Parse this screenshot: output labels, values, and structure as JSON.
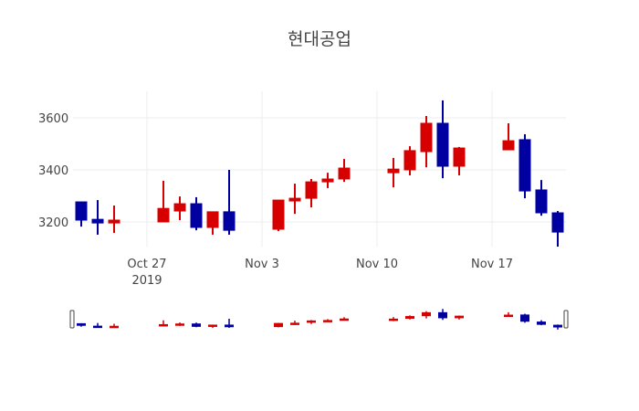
{
  "title": "현대공업",
  "colors": {
    "increasing": "#d60000",
    "decreasing": "#0000a0",
    "grid": "#eeeeee",
    "slider_border": "#444444"
  },
  "chart_data": {
    "type": "candlestick",
    "title": "현대공업",
    "xlabel": "",
    "ylabel": "",
    "ylim": [
      3100,
      3700
    ],
    "y_ticks": [
      3200,
      3400,
      3600
    ],
    "x_tick_labels": [
      "Oct 27\n2019",
      "Nov 3",
      "Nov 10",
      "Nov 17"
    ],
    "grid": true,
    "rangeslider": true,
    "x": [
      "2019-10-23",
      "2019-10-24",
      "2019-10-25",
      "2019-10-28",
      "2019-10-29",
      "2019-10-30",
      "2019-10-31",
      "2019-11-01",
      "2019-11-04",
      "2019-11-05",
      "2019-11-06",
      "2019-11-07",
      "2019-11-08",
      "2019-11-11",
      "2019-11-12",
      "2019-11-13",
      "2019-11-14",
      "2019-11-15",
      "2019-11-18",
      "2019-11-19",
      "2019-11-20",
      "2019-11-21"
    ],
    "open": [
      3277,
      3210,
      3196,
      3200,
      3242,
      3270,
      3179,
      3239,
      3172,
      3284,
      3291,
      3354,
      3365,
      3389,
      3400,
      3470,
      3579,
      3414,
      3477,
      3516,
      3323,
      3235
    ],
    "high": [
      3277,
      3284,
      3263,
      3358,
      3298,
      3295,
      3239,
      3400,
      3284,
      3347,
      3365,
      3389,
      3442,
      3446,
      3491,
      3607,
      3667,
      3488,
      3579,
      3537,
      3361,
      3242
    ],
    "low": [
      3182,
      3151,
      3158,
      3200,
      3207,
      3168,
      3151,
      3151,
      3165,
      3231,
      3256,
      3330,
      3354,
      3333,
      3379,
      3410,
      3368,
      3379,
      3477,
      3291,
      3224,
      3105
    ],
    "close": [
      3207,
      3196,
      3207,
      3252,
      3270,
      3179,
      3239,
      3168,
      3284,
      3291,
      3354,
      3365,
      3407,
      3403,
      3474,
      3579,
      3414,
      3484,
      3512,
      3319,
      3235,
      3161
    ]
  },
  "axes": {
    "y_labels": [
      "3600",
      "3400",
      "3200"
    ],
    "x_labels": [
      "Oct 27",
      "Nov 3",
      "Nov 10",
      "Nov 17"
    ],
    "x_year": "2019"
  }
}
